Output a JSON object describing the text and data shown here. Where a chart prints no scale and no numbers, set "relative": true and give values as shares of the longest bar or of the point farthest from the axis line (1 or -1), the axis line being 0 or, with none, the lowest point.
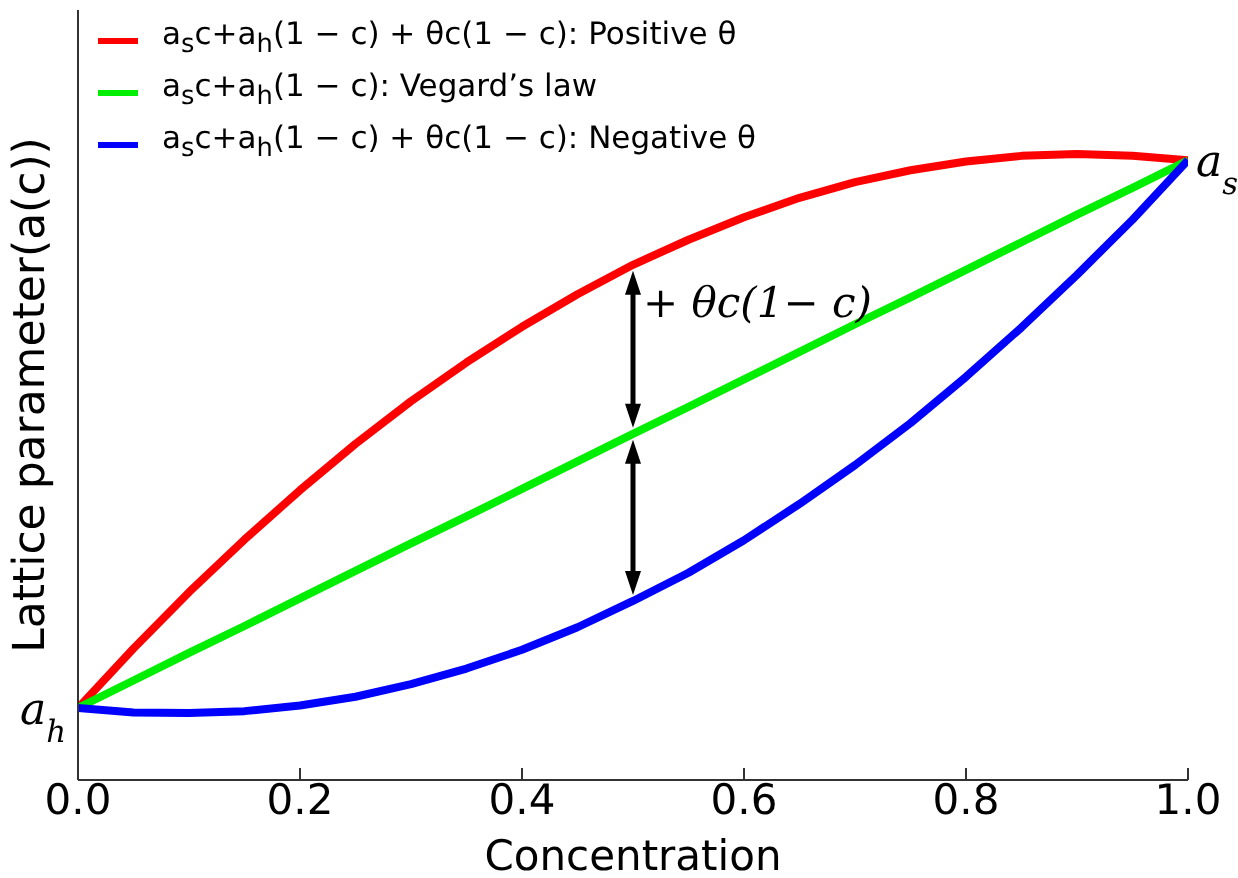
{
  "chart_data": {
    "type": "line",
    "xlabel": "Concentration",
    "ylabel": "Lattice parameter(a(c))",
    "relative": true,
    "legend": "top left",
    "marker": "none",
    "line_style": "solid",
    "x": [
      0,
      0.05,
      0.1,
      0.15,
      0.2,
      0.25,
      0.3,
      0.35,
      0.4,
      0.45,
      0.5,
      0.55,
      0.6,
      0.65,
      0.7,
      0.75,
      0.8,
      0.85,
      0.9,
      0.95,
      1
    ],
    "xlim": [
      0,
      1
    ],
    "xticks": [
      {
        "value": 0,
        "label": "0.0"
      },
      {
        "value": 0.2,
        "label": "0.2"
      },
      {
        "value": 0.4,
        "label": "0.4"
      },
      {
        "value": 0.6,
        "label": "0.6"
      },
      {
        "value": 0.8,
        "label": "0.8"
      },
      {
        "value": 1,
        "label": "1.0"
      }
    ],
    "series": [
      {
        "name": "a$_{s}$c+a$_{h}$(1 − c) + θc(1 − c): Positive θ",
        "color": "#ff0000",
        "values": [
          0.115,
          0.21,
          0.3,
          0.384,
          0.463,
          0.537,
          0.605,
          0.667,
          0.724,
          0.776,
          0.823,
          0.863,
          0.899,
          0.93,
          0.955,
          0.974,
          0.988,
          0.997,
          1.0,
          0.997,
          0.99
        ]
      },
      {
        "name": "a$_{s}$c+a$_{h}$(1 − c): Vegard’s law",
        "color": "#00ee00",
        "values": [
          0.115,
          0.159,
          0.203,
          0.246,
          0.29,
          0.334,
          0.378,
          0.421,
          0.465,
          0.509,
          0.553,
          0.596,
          0.64,
          0.684,
          0.728,
          0.771,
          0.815,
          0.859,
          0.903,
          0.946,
          0.99
        ]
      },
      {
        "name": "a$_{s}$c+a$_{h}$(1 − c) + θc(1 − c): Negative θ",
        "color": "#0000ff",
        "values": [
          0.115,
          0.108,
          0.107,
          0.11,
          0.119,
          0.133,
          0.153,
          0.178,
          0.208,
          0.244,
          0.286,
          0.331,
          0.383,
          0.441,
          0.503,
          0.57,
          0.644,
          0.723,
          0.807,
          0.895,
          0.99
        ]
      }
    ],
    "annotations": [
      {
        "text": "a$_{h}$",
        "x": 0,
        "y": 0.115
      },
      {
        "text": "a$_{s}$",
        "x": 1,
        "y": 0.99
      },
      "+ θc(1− c)"
    ]
  }
}
